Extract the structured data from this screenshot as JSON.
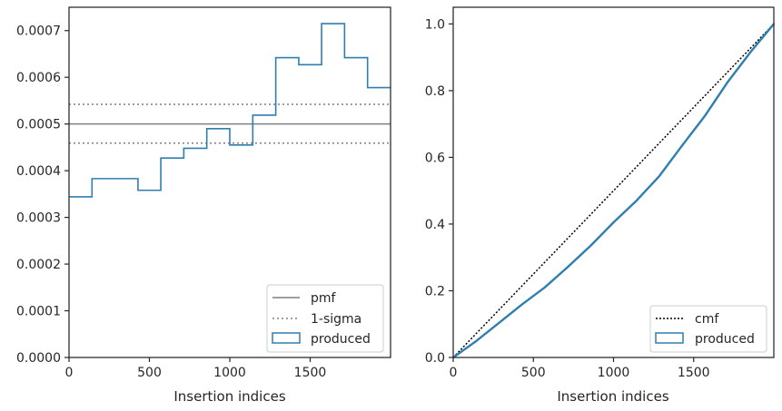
{
  "colors": {
    "produced": "#2e7fb0",
    "pmf": "#7f7f7f",
    "sigma": "#7f7f7f",
    "cmf": "#000000",
    "axes": "#262626"
  },
  "chart_data": [
    {
      "type": "step-histogram",
      "xlabel": "Insertion indices",
      "ylabel": "",
      "xlim": [
        0,
        2000
      ],
      "ylim": [
        0,
        0.00075
      ],
      "xticks": [
        0,
        500,
        1000,
        1500
      ],
      "xtick_labels": [
        "0",
        "500",
        "1000",
        "1500"
      ],
      "yticks": [
        0,
        0.0001,
        0.0002,
        0.0003,
        0.0004,
        0.0005,
        0.0006,
        0.0007
      ],
      "ytick_labels": [
        "0.0000",
        "0.0001",
        "0.0002",
        "0.0003",
        "0.0004",
        "0.0005",
        "0.0006",
        "0.0007"
      ],
      "bin_edges": [
        0,
        143,
        286,
        429,
        571,
        714,
        857,
        1000,
        1143,
        1286,
        1429,
        1571,
        1714,
        1857,
        2000
      ],
      "produced": [
        0.000344,
        0.000383,
        0.000383,
        0.000358,
        0.000427,
        0.000448,
        0.00049,
        0.000455,
        0.000519,
        0.000642,
        0.000627,
        0.000715,
        0.000642,
        0.000578
      ],
      "pmf": 0.0005,
      "sigma_lower": 0.000459,
      "sigma_upper": 0.000542,
      "legend": [
        "pmf",
        "1-sigma",
        "produced"
      ],
      "legend_position": "lower right",
      "grid": false
    },
    {
      "type": "line",
      "xlabel": "Insertion indices",
      "ylabel": "",
      "xlim": [
        0,
        2000
      ],
      "ylim": [
        0,
        1.05
      ],
      "xticks": [
        0,
        500,
        1000,
        1500
      ],
      "xtick_labels": [
        "0",
        "500",
        "1000",
        "1500"
      ],
      "yticks": [
        0,
        0.2,
        0.4,
        0.6,
        0.8,
        1.0
      ],
      "ytick_labels": [
        "0.0",
        "0.2",
        "0.4",
        "0.6",
        "0.8",
        "1.0"
      ],
      "cmf": {
        "x": [
          0,
          2000
        ],
        "y": [
          0,
          1.0
        ]
      },
      "produced": {
        "x": [
          0,
          143,
          286,
          429,
          571,
          714,
          857,
          1000,
          1143,
          1286,
          1429,
          1571,
          1714,
          1857,
          2000
        ],
        "y": [
          0,
          0.049,
          0.104,
          0.159,
          0.21,
          0.271,
          0.335,
          0.405,
          0.47,
          0.544,
          0.636,
          0.725,
          0.827,
          0.917,
          1.0
        ]
      },
      "legend": [
        "cmf",
        "produced"
      ],
      "legend_position": "lower right",
      "grid": false
    }
  ]
}
